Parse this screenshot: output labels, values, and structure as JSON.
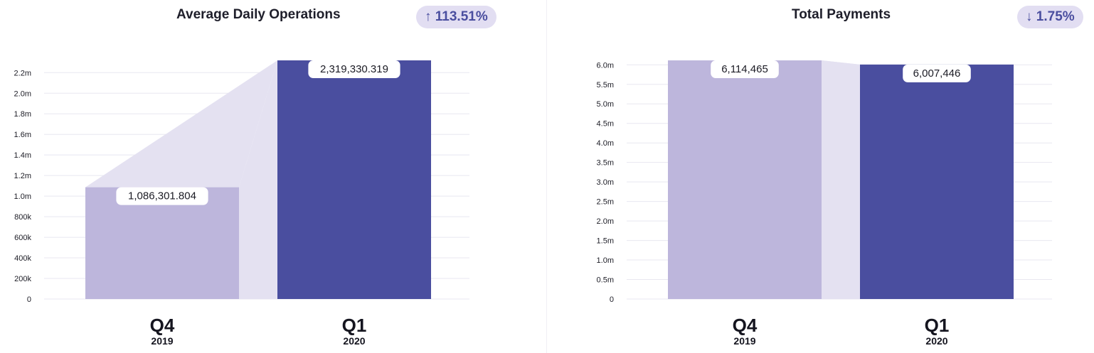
{
  "colors": {
    "prev_bar": "#bdb6dc",
    "curr_bar": "#4a4e9f",
    "connector": "#e4e1f1",
    "grid": "#e8e7f0",
    "badge_bg": "#e2def2",
    "badge_text": "#4a4e9f"
  },
  "chart_data": [
    {
      "type": "bar",
      "title": "Average Daily Operations",
      "change_badge": "↑ 113.51%",
      "categories": [
        "Q4",
        "Q1"
      ],
      "category_years": [
        "2019",
        "2020"
      ],
      "values": [
        1086301.804,
        2319330.319
      ],
      "value_labels": [
        "1,086,301.804",
        "2,319,330.319"
      ],
      "yticks": [
        0,
        200000,
        400000,
        600000,
        800000,
        1000000,
        1200000,
        1400000,
        1600000,
        1800000,
        2000000,
        2200000
      ],
      "ytick_labels": [
        "0",
        "200k",
        "400k",
        "600k",
        "800k",
        "1.0m",
        "1.2m",
        "1.4m",
        "1.6m",
        "1.8m",
        "2.0m",
        "2.2m"
      ],
      "ylim": [
        0,
        2319330.319
      ],
      "grid": true,
      "legend": "none"
    },
    {
      "type": "bar",
      "title": "Total Payments",
      "change_badge": "↓ 1.75%",
      "categories": [
        "Q4",
        "Q1"
      ],
      "category_years": [
        "2019",
        "2020"
      ],
      "values": [
        6114465,
        6007446
      ],
      "value_labels": [
        "6,114,465",
        "6,007,446"
      ],
      "yticks": [
        0,
        500000,
        1000000,
        1500000,
        2000000,
        2500000,
        3000000,
        3500000,
        4000000,
        4500000,
        5000000,
        5500000,
        6000000
      ],
      "ytick_labels": [
        "0",
        "0.5m",
        "1.0m",
        "1.5m",
        "2.0m",
        "2.5m",
        "3.0m",
        "3.5m",
        "4.0m",
        "4.5m",
        "5.0m",
        "5.5m",
        "6.0m"
      ],
      "ylim": [
        0,
        6114465
      ],
      "grid": true,
      "legend": "none"
    }
  ]
}
